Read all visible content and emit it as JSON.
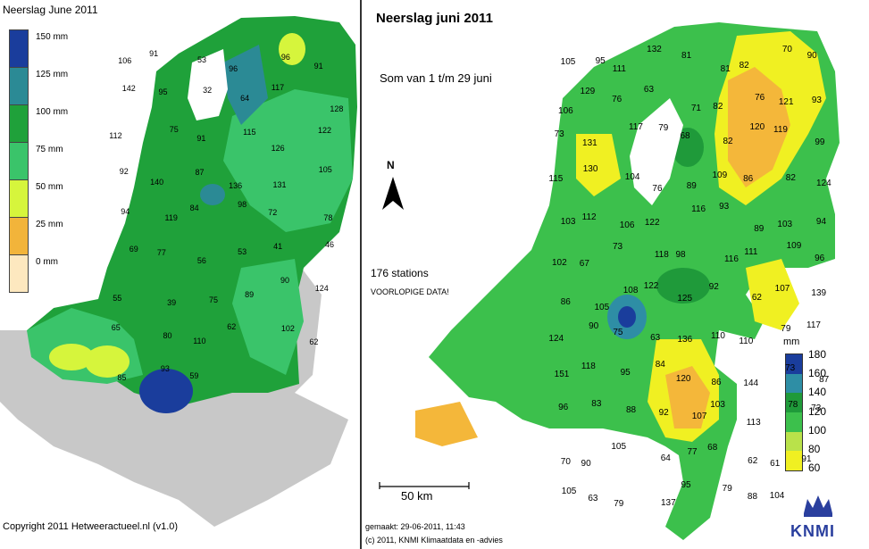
{
  "left_map": {
    "title": "Neerslag June 2011",
    "copyright": "Copyright 2011 Hetweeractueel.nl (v1.0)",
    "legend": [
      {
        "label": "150 mm",
        "color": "#1a3d9c"
      },
      {
        "label": "125 mm",
        "color": "#2b8a95"
      },
      {
        "label": "100 mm",
        "color": "#1fa13a"
      },
      {
        "label": "75 mm",
        "color": "#3ac46a"
      },
      {
        "label": "50 mm",
        "color": "#d6f53c"
      },
      {
        "label": "25 mm",
        "color": "#f2b43a"
      },
      {
        "label": "0 mm",
        "color": "#fde8bf"
      }
    ],
    "station_values": [
      "106",
      "91",
      "53",
      "96",
      "96",
      "91",
      "142",
      "95",
      "32",
      "64",
      "117",
      "128",
      "112",
      "75",
      "91",
      "115",
      "126",
      "122",
      "92",
      "140",
      "87",
      "136",
      "131",
      "105",
      "94",
      "119",
      "84",
      "98",
      "72",
      "78",
      "69",
      "77",
      "56",
      "53",
      "41",
      "46",
      "55",
      "39",
      "75",
      "89",
      "90",
      "124",
      "65",
      "80",
      "110",
      "62",
      "102",
      "62",
      "85",
      "93",
      "59"
    ]
  },
  "right_map": {
    "title": "Neerslag juni 2011",
    "subtitle": "Som van 1 t/m 29 juni",
    "stations": "176 stations",
    "note": "VOORLOPIGE DATA!",
    "north": "N",
    "scale": "50 km",
    "made": "gemaakt: 29-06-2011, 11:43",
    "copyright": "(c) 2011, KNMI Klimaatdata en -advies",
    "logo": "KNMI",
    "unit": "mm",
    "legend": [
      {
        "label": "180",
        "color": "#1a3d9c"
      },
      {
        "label": "160",
        "color": "#2e8ea5"
      },
      {
        "label": "140",
        "color": "#1f9a3a"
      },
      {
        "label": "120",
        "color": "#3cc04c"
      },
      {
        "label": "100",
        "color": "#b9e24a"
      },
      {
        "label": "80",
        "color": "#f0f022"
      },
      {
        "label": "60",
        "color": "#f4b73a"
      }
    ],
    "station_values": [
      "105",
      "95",
      "111",
      "132",
      "81",
      "81",
      "82",
      "70",
      "90",
      "106",
      "129",
      "76",
      "63",
      "71",
      "82",
      "76",
      "121",
      "93",
      "73",
      "131",
      "117",
      "79",
      "68",
      "82",
      "120",
      "119",
      "99",
      "115",
      "130",
      "104",
      "76",
      "89",
      "109",
      "86",
      "82",
      "124",
      "103",
      "112",
      "106",
      "122",
      "116",
      "93",
      "89",
      "103",
      "94",
      "102",
      "67",
      "73",
      "118",
      "98",
      "116",
      "111",
      "109",
      "96",
      "86",
      "105",
      "108",
      "122",
      "125",
      "92",
      "62",
      "107",
      "139",
      "124",
      "90",
      "75",
      "63",
      "136",
      "110",
      "110",
      "79",
      "117",
      "151",
      "118",
      "95",
      "84",
      "120",
      "86",
      "144",
      "73",
      "87",
      "96",
      "83",
      "88",
      "92",
      "107",
      "103",
      "113",
      "78",
      "73",
      "70",
      "90",
      "105",
      "64",
      "77",
      "68",
      "62",
      "61",
      "91",
      "105",
      "63",
      "79",
      "137",
      "95",
      "79",
      "88",
      "104"
    ]
  }
}
